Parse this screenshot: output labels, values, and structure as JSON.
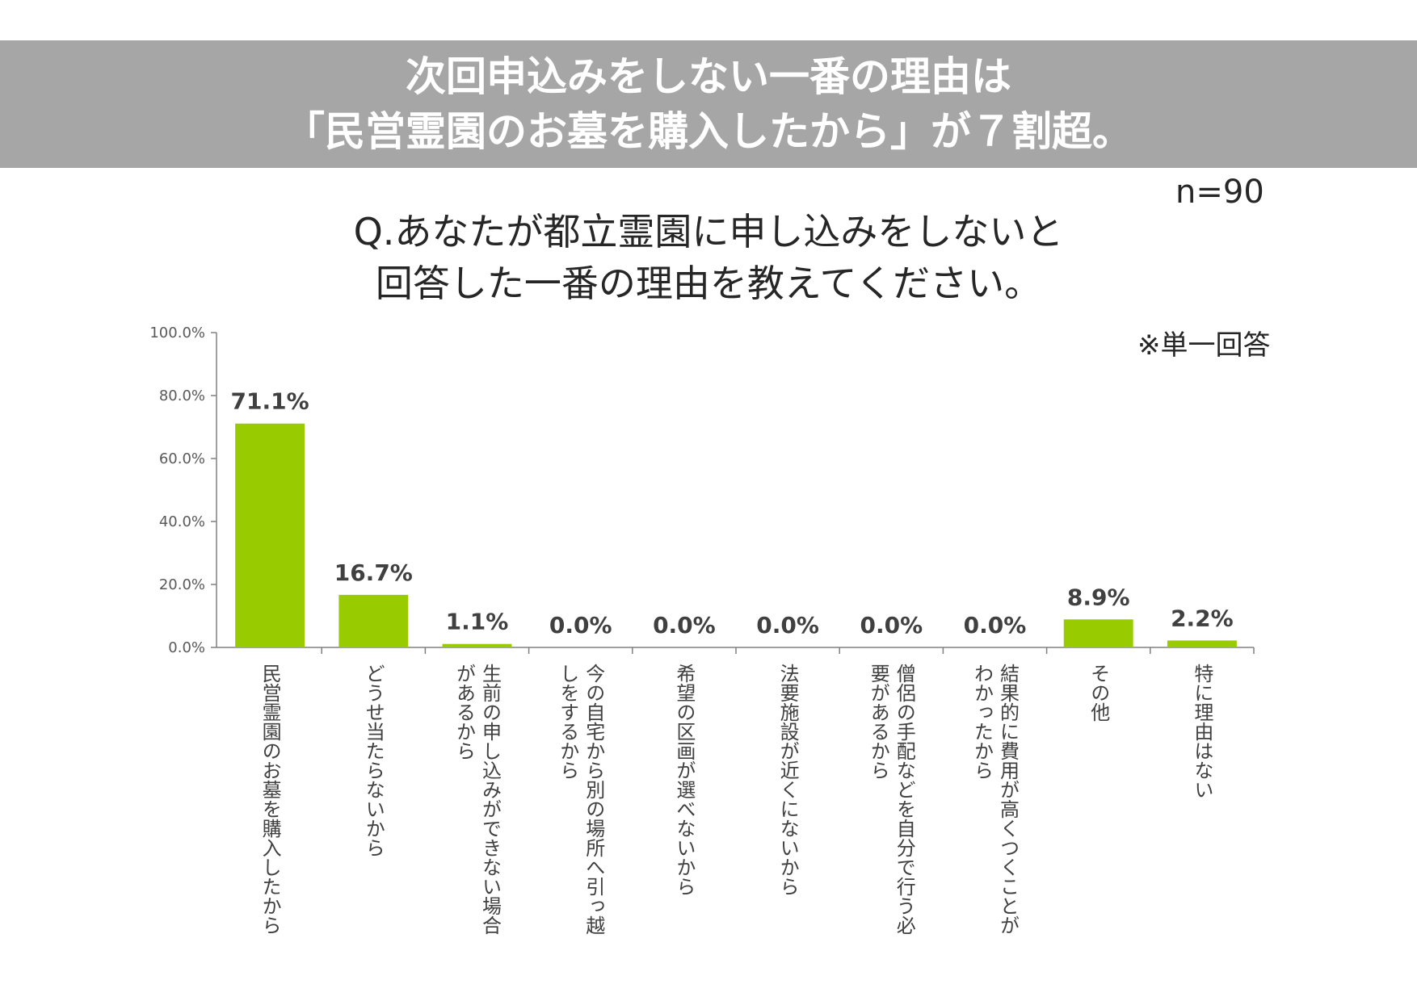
{
  "banner": {
    "line1": "次回申込みをしない一番の理由は",
    "line2": "「民営霊園のお墓を購入したから」が７割超。"
  },
  "sample_size": "n=90",
  "question": {
    "line1": "Q.あなたが都立霊園に申し込みをしないと",
    "line2": "回答した一番の理由を教えてください。"
  },
  "note": "※単一回答",
  "colors": {
    "banner_bg": "#a6a6a6",
    "bar": "#99cc00",
    "axis": "#808080",
    "text": "#404040"
  },
  "chart_data": {
    "type": "bar",
    "ylim": [
      0,
      100
    ],
    "yticks": [
      "0.0%",
      "20.0%",
      "40.0%",
      "60.0%",
      "80.0%",
      "100.0%"
    ],
    "grid": false,
    "categories": [
      [
        "民営霊園のお墓を購入したから"
      ],
      [
        "どうせ当たらないから"
      ],
      [
        "生前の申し込みができない場合",
        "があるから"
      ],
      [
        "今の自宅から別の場所へ引っ越",
        "しをするから"
      ],
      [
        "希望の区画が選べないから"
      ],
      [
        "法要施設が近くにないから"
      ],
      [
        "僧侶の手配などを自分で行う必",
        "要があるから"
      ],
      [
        "結果的に費用が高くつくことが",
        "わかったから"
      ],
      [
        "その他"
      ],
      [
        "特に理由はない"
      ]
    ],
    "values": [
      71.1,
      16.7,
      1.1,
      0.0,
      0.0,
      0.0,
      0.0,
      0.0,
      8.9,
      2.2
    ],
    "value_labels": [
      "71.1%",
      "16.7%",
      "1.1%",
      "0.0%",
      "0.0%",
      "0.0%",
      "0.0%",
      "0.0%",
      "8.9%",
      "2.2%"
    ]
  }
}
